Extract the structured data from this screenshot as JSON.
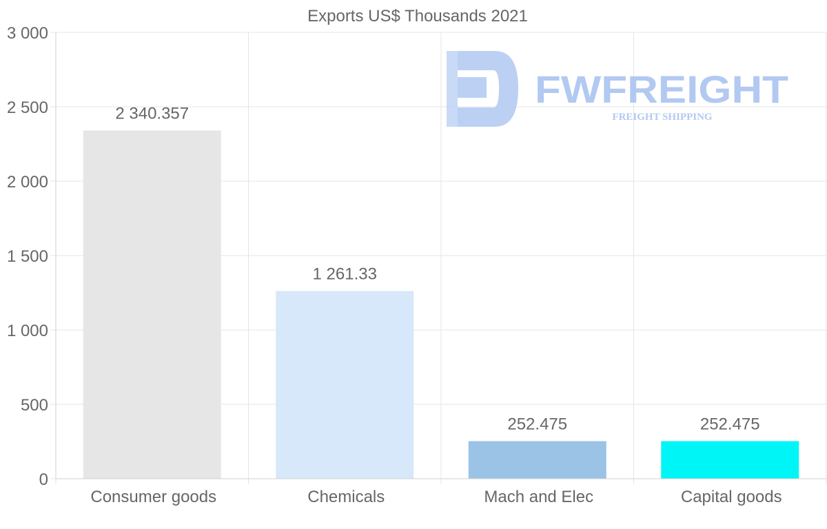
{
  "chart_data": {
    "type": "bar",
    "title": "Exports US$ Thousands 2021",
    "xlabel": "",
    "ylabel": "",
    "categories": [
      "Consumer goods",
      "Chemicals",
      "Mach and Elec",
      "Capital goods"
    ],
    "values": [
      2340.357,
      1261.33,
      252.475,
      252.475
    ],
    "value_labels": [
      "2 340.357",
      "1 261.33",
      "252.475",
      "252.475"
    ],
    "bar_colors": [
      "#e6e6e6",
      "#d6e8f9",
      "#9ac3e6",
      "#00f5f7"
    ],
    "ylim": [
      0,
      3000
    ],
    "yticks": [
      0,
      500,
      1000,
      1500,
      2000,
      2500,
      3000
    ],
    "ytick_labels": [
      "0",
      "500",
      "1 000",
      "1 500",
      "2 000",
      "2 500",
      "3 000"
    ],
    "grid": true,
    "legend": "none"
  },
  "watermark": {
    "brand": "FWFREIGHT",
    "tagline": "FREIGHT SHIPPING",
    "color": "#aac4f0"
  },
  "colors": {
    "text": "#666666",
    "grid": "#e5e5e5"
  }
}
